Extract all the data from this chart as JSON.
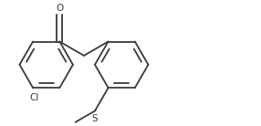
{
  "bg_color": "#ffffff",
  "line_color": "#3a3a3a",
  "lw": 1.3,
  "label_fontsize": 7.5,
  "fig_width": 2.86,
  "fig_height": 1.38,
  "dpi": 100,
  "R": 0.38,
  "xlim": [
    -0.1,
    3.6
  ],
  "ylim": [
    -0.85,
    0.9
  ]
}
